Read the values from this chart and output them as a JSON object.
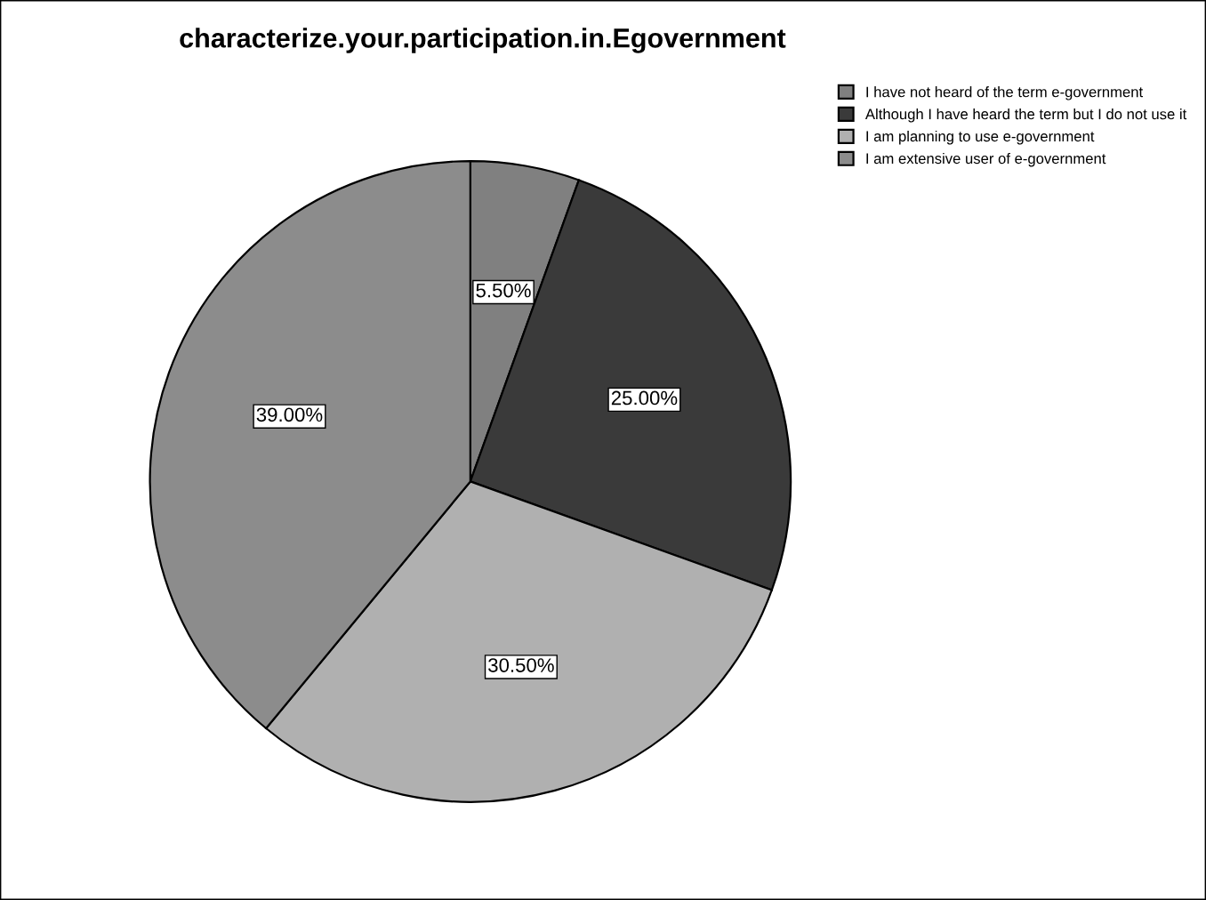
{
  "chart_data": {
    "type": "pie",
    "title": "characterize.your.participation.in.Egovernment",
    "categories": [
      "I have not heard of the term e-government",
      "Although I have heard the term but I do not use it",
      "I am planning to use e-government",
      "I am extensive user of e-government"
    ],
    "values": [
      5.5,
      25.0,
      30.5,
      39.0
    ],
    "value_labels": [
      "5.50%",
      "25.00%",
      "30.50%",
      "39.00%"
    ],
    "colors": [
      "#808080",
      "#3a3a3a",
      "#b0b0b0",
      "#8c8c8c"
    ],
    "legend": "top right"
  }
}
